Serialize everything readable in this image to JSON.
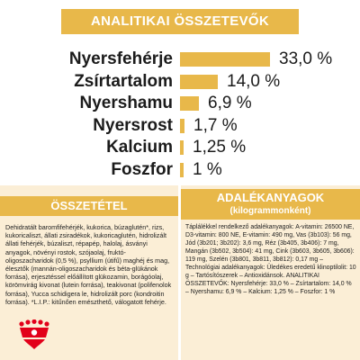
{
  "analytical": {
    "title": "ANALITIKAI ÖSSZETEVŐK",
    "rows": [
      {
        "label": "Nyersfehérje",
        "value": "33,0 %",
        "percent": 33.0
      },
      {
        "label": "Zsírtartalom",
        "value": "14,0 %",
        "percent": 14.0
      },
      {
        "label": "Nyershamu",
        "value": "6,9 %",
        "percent": 6.9
      },
      {
        "label": "Nyersrost",
        "value": "1,7 %",
        "percent": 1.7
      },
      {
        "label": "Kalcium",
        "value": "1,25 %",
        "percent": 1.25
      },
      {
        "label": "Foszfor",
        "value": "1 %",
        "percent": 1.0
      }
    ]
  },
  "composition": {
    "title": "ÖSSZETÉTEL",
    "text": "Dehidratált baromfifehérjék, kukorica, búzaglutén*, rizs, kukoricaliszt, állati zsiradékok, kukoricaglutén, hidrolizált állati fehérjék, búzaliszt, répapép, halolaj, ásványi anyagok, növényi rostok, szójaolaj, fruktó-oligoszacharidok (0,5 %), psyllium (útifű) maghéj és mag, élesztők (mannán-oligoszacharidok és béta-glükánok forrása), erjesztéssel előállított glükozamin, borágóolaj, körömvirág kivonat (lutein forrása), teakivonat (polifenolok forrása), Yucca schidigera le, hidrolizált porc (kondroitin forrása). *L.I.P.: kitűnően emészthető, válogatott fehérje."
  },
  "additives": {
    "title": "ADALÉKANYAGOK",
    "subtitle": "(kilogrammonként)",
    "text": "Táplálékkel rendelkező adalékanyagok: A-vitamin: 26500 NE, D3-vitamin: 800 NE, E-vitamin: 490 mg, Vas (3b103): 56 mg, Jód (3b201; 3b202): 3,6 mg, Réz (3b405, 3b406): 7 mg, Mangán (3b502, 3b504): 41 mg, Cink (3b603, 3b605, 3b606): 119 mg, Szelén (3b801, 3b811, 3b812): 0,17 mg – Technológiai adalékanyagok: Üledékes eredetű klinoptilolit: 10 g – Tartósítószerek – Antioxidánsok. ANALITIKAI ÖSSZETEVŐK: Nyersfehérje: 33,0 % – Zsírtartalom: 14,0 % – Nyershamu: 6,9 % – Kalcium: 1,25 % – Foszfor: 1 %"
  },
  "colors": {
    "accent": "#e8b84a",
    "panel_bg": "#fbeed6",
    "logo_red": "#e2001a"
  },
  "logo": {
    "name": "royal-canin-crown-logo"
  }
}
